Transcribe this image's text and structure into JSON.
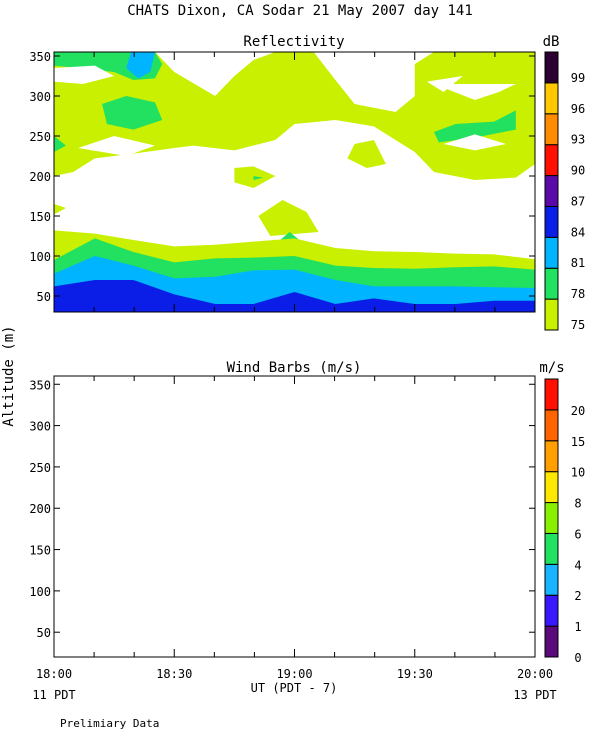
{
  "figure": {
    "title": "CHATS Dixon, CA  Sodar  21 May 2007  day 141",
    "shared_ylabel": "Altitude (m)",
    "xlabel": "UT  (PDT - 7)",
    "left_date": "11 PDT",
    "right_date": "13 PDT",
    "note": "Prelimiary Data"
  },
  "chart_data": [
    {
      "type": "heatmap",
      "title": "Reflectivity",
      "colorbar_unit": "dB",
      "x_ticks": [
        "18:00",
        "18:30",
        "19:00",
        "19:30",
        "20:00"
      ],
      "y_ticks": [
        50,
        100,
        150,
        200,
        250,
        300,
        350
      ],
      "xlim_hours": [
        18.0,
        20.0
      ],
      "ylim": [
        30,
        355
      ],
      "colorbar": {
        "levels": [
          75,
          78,
          81,
          84,
          87,
          90,
          93,
          96,
          99
        ],
        "colors": [
          "#c8f000",
          "#22e060",
          "#00b4ff",
          "#0a1ee8",
          "#5a0aa8",
          "#ff1000",
          "#ff8c00",
          "#ffc800",
          "#2a0030"
        ]
      },
      "bands": [
        {
          "level": 75,
          "color": "#c8f000",
          "top_altitude_profile": [
            [
              18.0,
              132
            ],
            [
              18.17,
              128
            ],
            [
              18.33,
              120
            ],
            [
              18.5,
              112
            ],
            [
              18.67,
              114
            ],
            [
              18.83,
              118
            ],
            [
              19.0,
              122
            ],
            [
              19.17,
              110
            ],
            [
              19.33,
              106
            ],
            [
              19.5,
              105
            ],
            [
              19.67,
              103
            ],
            [
              19.83,
              102
            ],
            [
              20.0,
              96
            ]
          ]
        },
        {
          "level": 78,
          "color": "#22e060",
          "top_altitude_profile": [
            [
              18.0,
              95
            ],
            [
              18.17,
              122
            ],
            [
              18.33,
              105
            ],
            [
              18.5,
              92
            ],
            [
              18.67,
              97
            ],
            [
              18.83,
              98
            ],
            [
              19.0,
              100
            ],
            [
              19.17,
              88
            ],
            [
              19.33,
              85
            ],
            [
              19.5,
              84
            ],
            [
              19.67,
              86
            ],
            [
              19.83,
              87
            ],
            [
              20.0,
              83
            ]
          ]
        },
        {
          "level": 81,
          "color": "#00b4ff",
          "top_altitude_profile": [
            [
              18.0,
              78
            ],
            [
              18.17,
              100
            ],
            [
              18.33,
              88
            ],
            [
              18.5,
              72
            ],
            [
              18.67,
              74
            ],
            [
              18.83,
              82
            ],
            [
              19.0,
              83
            ],
            [
              19.17,
              70
            ],
            [
              19.33,
              62
            ],
            [
              19.5,
              62
            ],
            [
              19.67,
              62
            ],
            [
              19.83,
              61
            ],
            [
              20.0,
              60
            ]
          ]
        },
        {
          "level": 84,
          "color": "#0a1ee8",
          "top_altitude_profile": [
            [
              18.0,
              62
            ],
            [
              18.17,
              70
            ],
            [
              18.33,
              70
            ],
            [
              18.5,
              52
            ],
            [
              18.67,
              40
            ],
            [
              18.83,
              40
            ],
            [
              19.0,
              55
            ],
            [
              19.17,
              40
            ],
            [
              19.33,
              47
            ],
            [
              19.5,
              40
            ],
            [
              19.67,
              40
            ],
            [
              19.83,
              44
            ],
            [
              20.0,
              44
            ]
          ]
        }
      ],
      "patches": [
        {
          "level": 75,
          "points": [
            [
              18.0,
              355
            ],
            [
              18.42,
              355
            ],
            [
              18.5,
              330
            ],
            [
              18.67,
              300
            ],
            [
              18.75,
              325
            ],
            [
              18.83,
              345
            ],
            [
              18.92,
              355
            ],
            [
              19.08,
              355
            ],
            [
              19.17,
              320
            ],
            [
              19.25,
              290
            ],
            [
              19.42,
              280
            ],
            [
              19.5,
              300
            ],
            [
              19.5,
              340
            ],
            [
              19.58,
              355
            ],
            [
              20.0,
              355
            ],
            [
              20.0,
              215
            ],
            [
              19.92,
              198
            ],
            [
              19.75,
              195
            ],
            [
              19.58,
              205
            ],
            [
              19.5,
              230
            ],
            [
              19.33,
              262
            ],
            [
              19.17,
              270
            ],
            [
              19.0,
              265
            ],
            [
              18.92,
              245
            ],
            [
              18.75,
              232
            ],
            [
              18.58,
              238
            ],
            [
              18.5,
              235
            ],
            [
              18.33,
              228
            ],
            [
              18.17,
              222
            ],
            [
              18.08,
              205
            ],
            [
              18.0,
              200
            ]
          ]
        },
        {
          "level": 75,
          "points": [
            [
              18.75,
              210
            ],
            [
              18.83,
              212
            ],
            [
              18.92,
              200
            ],
            [
              18.83,
              185
            ],
            [
              18.75,
              192
            ]
          ]
        },
        {
          "level": 75,
          "points": [
            [
              19.25,
              240
            ],
            [
              19.33,
              245
            ],
            [
              19.38,
              215
            ],
            [
              19.3,
              210
            ],
            [
              19.22,
              222
            ]
          ]
        },
        {
          "level": 75,
          "points": [
            [
              18.0,
              165
            ],
            [
              18.05,
              160
            ],
            [
              18.0,
              152
            ]
          ]
        },
        {
          "level": 75,
          "points": [
            [
              18.85,
              150
            ],
            [
              18.95,
              170
            ],
            [
              19.05,
              155
            ],
            [
              19.1,
              130
            ],
            [
              18.9,
              125
            ]
          ]
        },
        {
          "level": 78,
          "points": [
            [
              18.0,
              355
            ],
            [
              18.42,
              355
            ],
            [
              18.45,
              340
            ],
            [
              18.42,
              322
            ],
            [
              18.33,
              320
            ],
            [
              18.25,
              330
            ],
            [
              18.1,
              335
            ],
            [
              18.0,
              338
            ]
          ]
        },
        {
          "level": 78,
          "points": [
            [
              18.2,
              290
            ],
            [
              18.3,
              300
            ],
            [
              18.42,
              292
            ],
            [
              18.45,
              270
            ],
            [
              18.33,
              258
            ],
            [
              18.22,
              265
            ]
          ]
        },
        {
          "level": 78,
          "points": [
            [
              18.0,
              250
            ],
            [
              18.05,
              238
            ],
            [
              18.0,
              230
            ]
          ]
        },
        {
          "level": 78,
          "points": [
            [
              19.58,
              255
            ],
            [
              19.67,
              265
            ],
            [
              19.83,
              268
            ],
            [
              19.92,
              282
            ],
            [
              19.92,
              258
            ],
            [
              19.75,
              248
            ],
            [
              19.6,
              242
            ]
          ]
        },
        {
          "level": 81,
          "points": [
            [
              18.32,
              355
            ],
            [
              18.42,
              355
            ],
            [
              18.4,
              330
            ],
            [
              18.35,
              322
            ],
            [
              18.3,
              335
            ]
          ]
        },
        {
          "level": 78,
          "points": [
            [
              18.98,
              130
            ],
            [
              19.02,
              120
            ],
            [
              18.98,
              110
            ],
            [
              18.94,
              120
            ]
          ]
        },
        {
          "level": 78,
          "points": [
            [
              18.83,
              200
            ],
            [
              18.87,
              198
            ],
            [
              18.83,
              195
            ]
          ]
        }
      ],
      "clear_regions": [
        {
          "level": "white",
          "points": [
            [
              18.0,
              335
            ],
            [
              18.17,
              338
            ],
            [
              18.25,
              325
            ],
            [
              18.12,
              315
            ],
            [
              18.0,
              318
            ]
          ]
        },
        {
          "level": "white",
          "points": [
            [
              19.92,
              315
            ],
            [
              19.85,
              305
            ],
            [
              19.75,
              295
            ],
            [
              19.58,
              315
            ]
          ]
        },
        {
          "level": "white",
          "points": [
            [
              19.55,
              318
            ],
            [
              19.62,
              305
            ],
            [
              19.7,
              325
            ]
          ]
        },
        {
          "level": "white",
          "points": [
            [
              18.1,
              235
            ],
            [
              18.25,
              250
            ],
            [
              18.42,
              238
            ],
            [
              18.3,
              225
            ]
          ]
        },
        {
          "level": "white",
          "points": [
            [
              19.62,
              240
            ],
            [
              19.75,
              252
            ],
            [
              19.88,
              240
            ],
            [
              19.75,
              232
            ]
          ]
        }
      ]
    },
    {
      "type": "scatter",
      "title": "Wind Barbs (m/s)",
      "colorbar_unit": "m/s",
      "x_ticks": [
        "18:00",
        "18:30",
        "19:00",
        "19:30",
        "20:00"
      ],
      "y_ticks": [
        50,
        100,
        150,
        200,
        250,
        300,
        350
      ],
      "xlim_hours": [
        18.0,
        20.0
      ],
      "ylim": [
        20,
        360
      ],
      "colorbar": {
        "levels": [
          0,
          1,
          2,
          4,
          6,
          8,
          10,
          15,
          20
        ],
        "colors": [
          "#5a0a7a",
          "#3a18ff",
          "#18b4ff",
          "#22e060",
          "#88f000",
          "#ffe800",
          "#ffa000",
          "#ff6400",
          "#ff1000"
        ]
      },
      "barbs": []
    }
  ]
}
